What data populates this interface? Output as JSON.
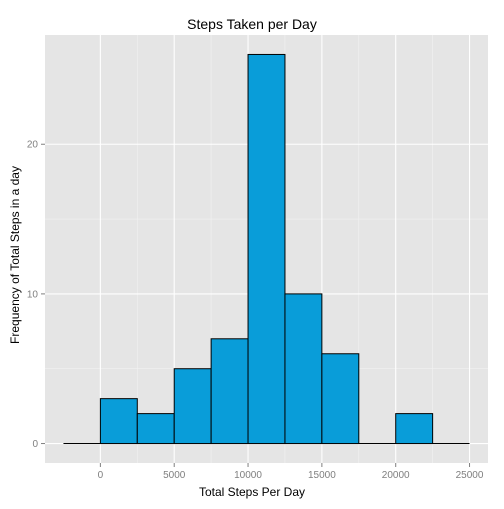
{
  "chart_data": {
    "type": "bar",
    "title": "Steps Taken per Day",
    "xlabel": "Total Steps Per Day",
    "ylabel": "Frequency of Total Steps in a day",
    "bin_width": 2500,
    "bins": [
      {
        "x0": -2500,
        "x1": 0,
        "count": 0
      },
      {
        "x0": 0,
        "x1": 2500,
        "count": 3
      },
      {
        "x0": 2500,
        "x1": 5000,
        "count": 2
      },
      {
        "x0": 5000,
        "x1": 7500,
        "count": 5
      },
      {
        "x0": 7500,
        "x1": 10000,
        "count": 7
      },
      {
        "x0": 10000,
        "x1": 12500,
        "count": 26
      },
      {
        "x0": 12500,
        "x1": 15000,
        "count": 10
      },
      {
        "x0": 15000,
        "x1": 17500,
        "count": 6
      },
      {
        "x0": 17500,
        "x1": 20000,
        "count": 0
      },
      {
        "x0": 20000,
        "x1": 22500,
        "count": 2
      },
      {
        "x0": 22500,
        "x1": 25000,
        "count": 0
      }
    ],
    "xlim": [
      -3750,
      26250
    ],
    "ylim": [
      -1.3,
      27.3
    ],
    "x_ticks": [
      0,
      5000,
      10000,
      15000,
      20000,
      25000
    ],
    "x_tick_labels": [
      "0",
      "5000",
      "10000",
      "15000",
      "20000",
      "25000"
    ],
    "y_ticks": [
      0,
      10,
      20
    ],
    "y_tick_labels": [
      "0",
      "10",
      "20"
    ],
    "grid": true,
    "colors": {
      "panel_background": "#E5E5E5",
      "grid_major": "#FFFFFF",
      "grid_minor": "#F2F2F2",
      "bar_fill": "#099DD9",
      "bar_outline": "#000000",
      "tick_label": "#7F7F7F"
    }
  }
}
